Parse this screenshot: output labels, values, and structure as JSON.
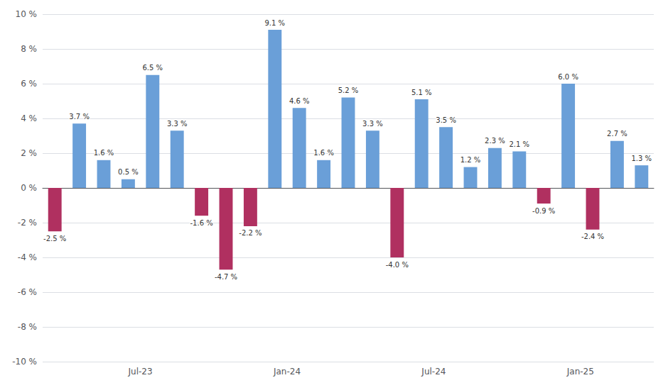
{
  "chart_data": {
    "type": "bar",
    "categories": [
      null,
      null,
      null,
      null,
      "Jul-23",
      null,
      null,
      null,
      null,
      null,
      "Jan-24",
      null,
      null,
      null,
      null,
      null,
      "Jul-24",
      null,
      null,
      null,
      null,
      null,
      "Jan-25",
      null,
      null
    ],
    "values": [
      -2.5,
      3.7,
      1.6,
      0.5,
      6.5,
      3.3,
      -1.6,
      -4.7,
      -2.2,
      9.1,
      4.6,
      1.6,
      5.2,
      3.3,
      -4.0,
      5.1,
      3.5,
      1.2,
      2.3,
      2.1,
      -0.9,
      6.0,
      -2.4,
      2.7,
      1.3
    ],
    "value_labels": [
      "-2.5 %",
      "3.7 %",
      "1.6 %",
      "0.5 %",
      "6.5 %",
      "3.3 %",
      "-1.6 %",
      "-4.7 %",
      "-2.2 %",
      "9.1 %",
      "4.6 %",
      "1.6 %",
      "5.2 %",
      "3.3 %",
      "-4.0 %",
      "5.1 %",
      "3.5 %",
      "1.2 %",
      "2.3 %",
      "2.1 %",
      "-0.9 %",
      "6.0 %",
      "-2.4 %",
      "2.7 %",
      "1.3 %"
    ],
    "colors": [
      "#b03060",
      "#6a9fd8",
      "#6a9fd8",
      "#6a9fd8",
      "#6a9fd8",
      "#6a9fd8",
      "#b03060",
      "#b03060",
      "#b03060",
      "#6a9fd8",
      "#6a9fd8",
      "#6a9fd8",
      "#6a9fd8",
      "#6a9fd8",
      "#b03060",
      "#6a9fd8",
      "#6a9fd8",
      "#6a9fd8",
      "#6a9fd8",
      "#6a9fd8",
      "#b03060",
      "#6a9fd8",
      "#b03060",
      "#6a9fd8",
      "#6a9fd8"
    ],
    "data_labels": true,
    "ylim": [
      -10,
      10
    ],
    "yticks": [
      {
        "value": -10,
        "label": "-10 %"
      },
      {
        "value": -8,
        "label": "-8 %"
      },
      {
        "value": -6,
        "label": "-6 %"
      },
      {
        "value": -4,
        "label": "-4 %"
      },
      {
        "value": -2,
        "label": "-2 %"
      },
      {
        "value": 0,
        "label": "0 %"
      },
      {
        "value": 2,
        "label": "2 %"
      },
      {
        "value": 4,
        "label": "4 %"
      },
      {
        "value": 6,
        "label": "6 %"
      },
      {
        "value": 8,
        "label": "8 %"
      },
      {
        "value": 10,
        "label": "10 %"
      }
    ],
    "grid": true
  }
}
